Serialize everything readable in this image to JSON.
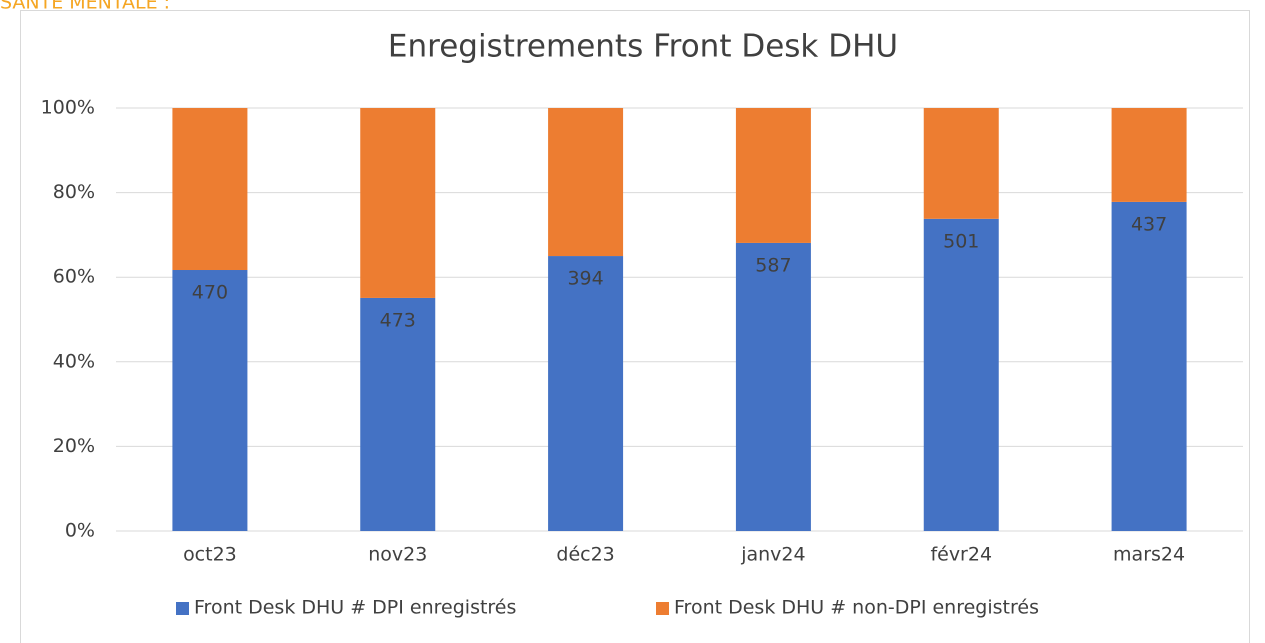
{
  "header": "SANTÉ MENTALE :",
  "chart_data": {
    "type": "stacked_bar_percent",
    "title": "Enregistrements Front Desk DHU",
    "categories": [
      "oct23",
      "nov23",
      "déc23",
      "janv24",
      "févr24",
      "mars24"
    ],
    "series": [
      {
        "name": "Front Desk DHU # DPI enregistrés",
        "color": "#4472c4",
        "values": [
          61.7,
          55.1,
          65.0,
          68.1,
          73.8,
          77.8
        ],
        "data_labels": [
          470,
          473,
          394,
          587,
          501,
          437
        ]
      },
      {
        "name": "Front Desk DHU # non-DPI enregistrés",
        "color": "#ed7d31",
        "values": [
          38.3,
          44.9,
          35.0,
          31.9,
          26.2,
          22.2
        ]
      }
    ],
    "ylim": [
      0,
      100
    ],
    "yticks": [
      {
        "value": 0,
        "label": "0%"
      },
      {
        "value": 20,
        "label": "20%"
      },
      {
        "value": 40,
        "label": "40%"
      },
      {
        "value": 60,
        "label": "60%"
      },
      {
        "value": 80,
        "label": "80%"
      },
      {
        "value": 100,
        "label": "100%"
      }
    ],
    "grid": true,
    "legend": "bottom"
  }
}
